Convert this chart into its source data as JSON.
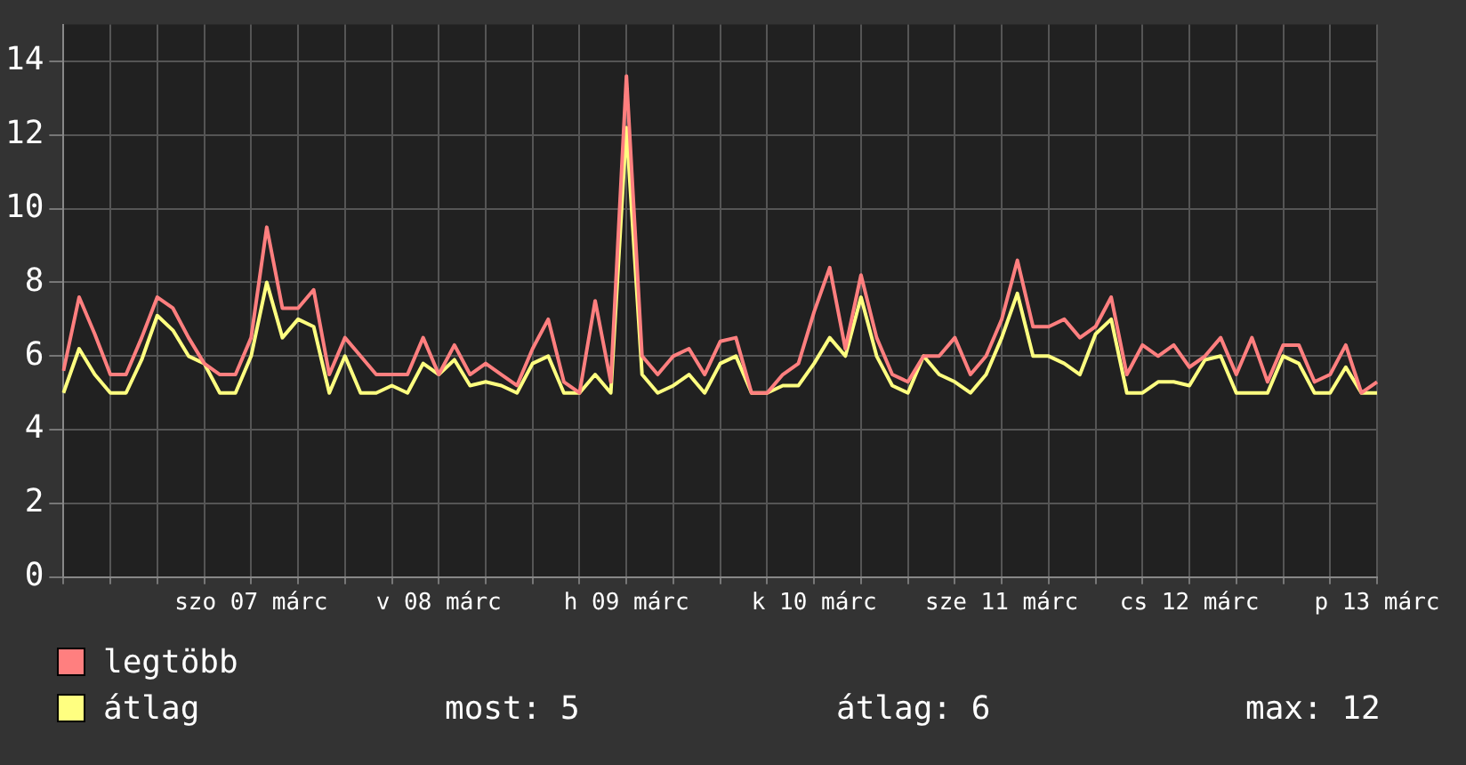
{
  "chart_data": {
    "type": "line",
    "categories": [
      null,
      null,
      null,
      null,
      null,
      null,
      null,
      null,
      null,
      null,
      null,
      null,
      "szo 07 márc",
      null,
      null,
      null,
      null,
      null,
      null,
      null,
      null,
      null,
      null,
      null,
      "v 08 márc",
      null,
      null,
      null,
      null,
      null,
      null,
      null,
      null,
      null,
      null,
      null,
      "h 09 márc",
      null,
      null,
      null,
      null,
      null,
      null,
      null,
      null,
      null,
      null,
      null,
      "k 10 márc",
      null,
      null,
      null,
      null,
      null,
      null,
      null,
      null,
      null,
      null,
      null,
      "sze 11 márc",
      null,
      null,
      null,
      null,
      null,
      null,
      null,
      null,
      null,
      null,
      null,
      "cs 12 márc",
      null,
      null,
      null,
      null,
      null,
      null,
      null,
      null,
      null,
      null,
      null,
      "p 13 márc"
    ],
    "series": [
      {
        "name": "legtöbb",
        "color": "#ff7f7f",
        "values": [
          5.6,
          7.6,
          6.6,
          5.5,
          5.5,
          6.5,
          7.6,
          7.3,
          6.5,
          5.8,
          5.5,
          5.5,
          6.5,
          9.5,
          7.3,
          7.3,
          7.8,
          5.5,
          6.5,
          6,
          5.5,
          5.5,
          5.5,
          6.5,
          5.5,
          6.3,
          5.5,
          5.8,
          5.5,
          5.2,
          6.2,
          7,
          5.3,
          5,
          7.5,
          5.3,
          13.6,
          6,
          5.5,
          6,
          6.2,
          5.5,
          6.4,
          6.5,
          5,
          5,
          5.5,
          5.8,
          7.2,
          8.4,
          6.2,
          8.2,
          6.5,
          5.5,
          5.3,
          6,
          6,
          6.5,
          5.5,
          6,
          7,
          8.6,
          6.8,
          6.8,
          7,
          6.5,
          6.8,
          7.6,
          5.5,
          6.3,
          6,
          6.3,
          5.7,
          6,
          6.5,
          5.5,
          6.5,
          5.3,
          6.3,
          6.3,
          5.3,
          5.5,
          6.3,
          5,
          5.3
        ]
      },
      {
        "name": "átlag",
        "color": "#ffff80",
        "values": [
          5,
          6.2,
          5.5,
          5,
          5,
          5.9,
          7.1,
          6.7,
          6,
          5.8,
          5,
          5,
          6,
          8,
          6.5,
          7,
          6.8,
          5,
          6,
          5,
          5,
          5.2,
          5,
          5.8,
          5.5,
          5.9,
          5.2,
          5.3,
          5.2,
          5,
          5.8,
          6,
          5,
          5,
          5.5,
          5,
          12.2,
          5.5,
          5,
          5.2,
          5.5,
          5,
          5.8,
          6,
          5,
          5,
          5.2,
          5.2,
          5.8,
          6.5,
          6,
          7.6,
          6,
          5.2,
          5,
          6,
          5.5,
          5.3,
          5,
          5.5,
          6.5,
          7.7,
          6,
          6,
          5.8,
          5.5,
          6.6,
          7,
          5,
          5,
          5.3,
          5.3,
          5.2,
          5.9,
          6,
          5,
          5,
          5,
          6,
          5.8,
          5,
          5,
          5.7,
          5,
          5
        ]
      }
    ],
    "ylim": [
      0,
      15
    ],
    "yticks": [
      0,
      2,
      4,
      6,
      8,
      10,
      12,
      14
    ],
    "grid": true,
    "legend": "bottom",
    "marker": "none",
    "line_style": "solid",
    "annotations": [
      "most: 5",
      "átlag: 6",
      "max: 12"
    ]
  }
}
